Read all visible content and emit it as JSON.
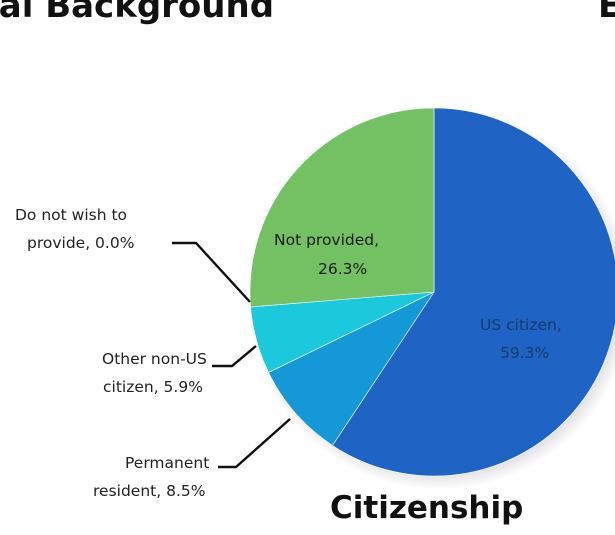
{
  "header": {
    "section_title": "ral Background",
    "edge_letter": "E"
  },
  "chart_data": {
    "type": "pie",
    "title": "Citizenship",
    "colors": {
      "US citizen": "#1f63c4",
      "Permanent resident": "#1498d8",
      "Other non-US citizen": "#1cc8dc",
      "Do not wish to provide": "#36c0c8",
      "Not provided": "#74c163"
    },
    "slices": [
      {
        "key": "us",
        "label": "US citizen,",
        "value_text": "59.3%",
        "value": 59.3
      },
      {
        "key": "perm",
        "label": "Permanent",
        "value_text": "resident, 8.5%",
        "value": 8.5
      },
      {
        "key": "other",
        "label": "Other non-US",
        "value_text": "citizen, 5.9%",
        "value": 5.9
      },
      {
        "key": "dnw",
        "label": "Do not wish to",
        "value_text": "provide, 0.0%",
        "value": 0.0
      },
      {
        "key": "np",
        "label": "Not provided,",
        "value_text": "26.3%",
        "value": 26.3
      }
    ]
  }
}
